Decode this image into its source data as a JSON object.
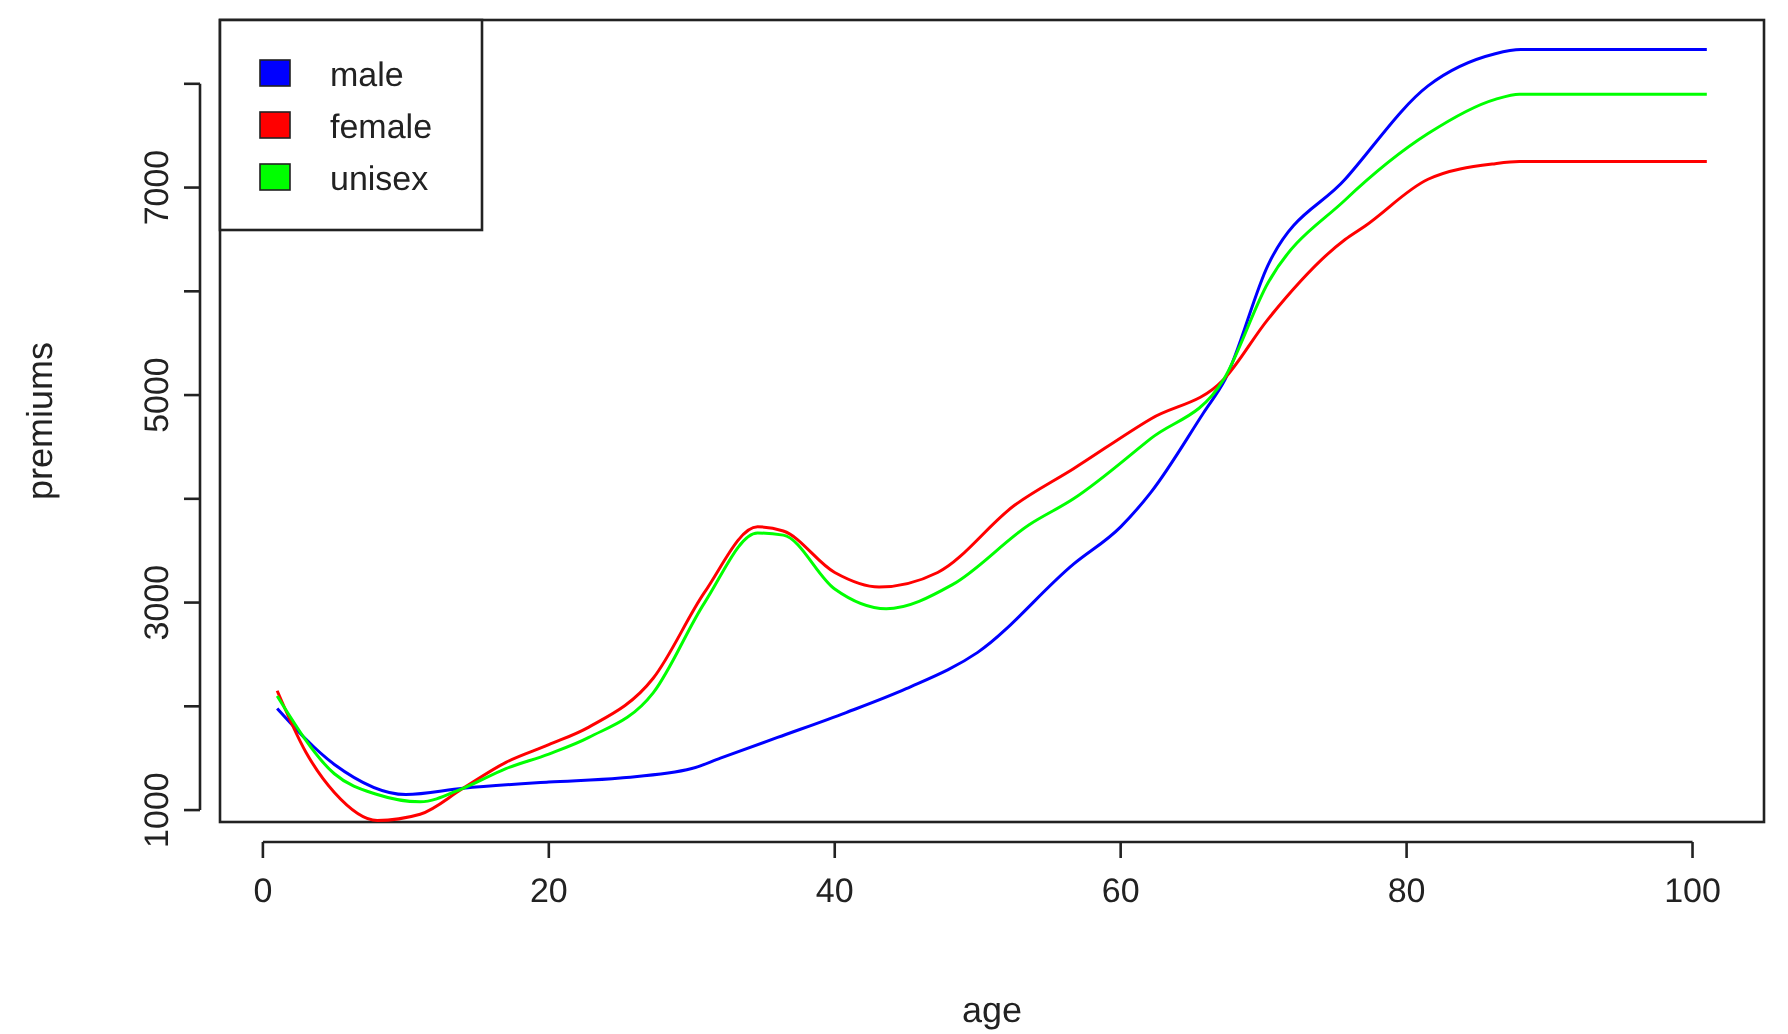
{
  "chart_data": {
    "type": "line",
    "xlabel": "age",
    "ylabel": "premiums",
    "xlim": [
      -3,
      105
    ],
    "ylim": [
      885,
      8615
    ],
    "xticks": [
      0,
      20,
      40,
      60,
      80,
      100
    ],
    "yticks": [
      1000,
      {
        "value": 2000,
        "label": null
      },
      3000,
      {
        "value": 4000,
        "label": null
      },
      5000,
      {
        "value": 6000,
        "label": null
      },
      7000,
      {
        "value": 8000,
        "label": null
      }
    ],
    "legend": "top left",
    "grid": false,
    "marker": "none",
    "line_style": "solid",
    "series": [
      {
        "name": "male",
        "color": "#0000ff",
        "x": [
          1,
          5,
          10,
          14,
          20,
          25,
          30,
          32,
          36,
          40.8,
          45,
          50,
          56.7,
          60,
          62.1,
          65.8,
          67.3,
          70.3,
          75.7,
          81.5,
          86.2,
          88,
          101
        ],
        "values": [
          1980,
          1440,
          1150,
          1210,
          1270,
          1310,
          1400,
          1500,
          1700,
          1940,
          2170,
          2520,
          3370,
          3730,
          4060,
          4830,
          5150,
          6250,
          7080,
          7980,
          8290,
          8330,
          8330
        ]
      },
      {
        "name": "female",
        "color": "#ff0000",
        "x": [
          1,
          3,
          5,
          8,
          11,
          14,
          17,
          20,
          22.8,
          27.3,
          30.9,
          34.6,
          36.4,
          40,
          43.1,
          47.2,
          52.6,
          56.7,
          62.1,
          67.2,
          70.3,
          75.7,
          77.1,
          81.5,
          86.2,
          87.9,
          101
        ],
        "values": [
          2150,
          1560,
          1170,
          900,
          960,
          1210,
          1460,
          1630,
          1800,
          2270,
          3100,
          3730,
          3690,
          3290,
          3150,
          3290,
          3940,
          4290,
          4770,
          5150,
          5730,
          6500,
          6630,
          7080,
          7230,
          7250,
          7250
        ]
      },
      {
        "name": "unisex",
        "color": "#00ff00",
        "x": [
          1,
          5,
          8,
          11,
          14,
          17,
          20,
          22.8,
          27.3,
          30.9,
          34.6,
          36.4,
          40,
          43.6,
          48.2,
          53.6,
          56.7,
          62.1,
          67.2,
          70.3,
          75.7,
          81.5,
          86.2,
          87.9,
          101
        ],
        "values": [
          2100,
          1350,
          1150,
          1080,
          1210,
          1400,
          1540,
          1700,
          2130,
          3000,
          3670,
          3650,
          3130,
          2940,
          3170,
          3750,
          4000,
          4580,
          5150,
          6080,
          6880,
          7520,
          7850,
          7900,
          7900
        ]
      }
    ]
  }
}
